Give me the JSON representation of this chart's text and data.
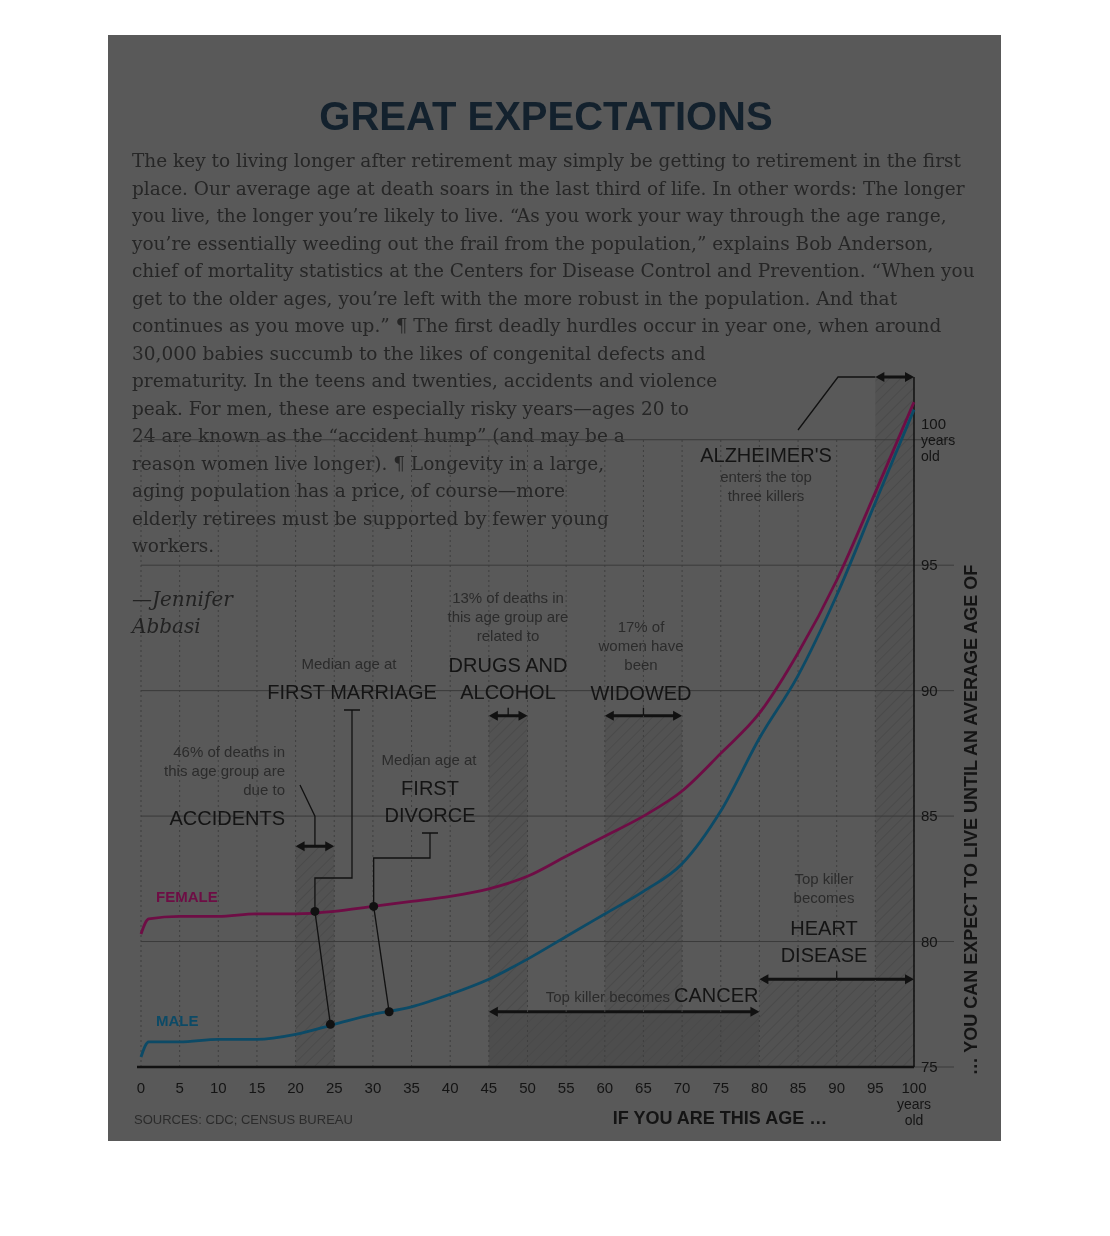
{
  "chart_data": {
    "type": "line",
    "title": "GREAT EXPECTATIONS",
    "subtitle": "The key to living longer after retirement may simply be getting to retirement in the first place. Our average age at death soars in the last third of life. In other words: The longer you live, the longer you’re likely to live. “As you work your way through the age range, you’re essentially weeding out the frail from the population,” explains Bob Anderson, chief of mortality statistics at the Centers for Disease Control and Prevention. “When you get to the older ages, you’re left with the more robust in the population. And that continues as you move up.” ¶ The first deadly hurdles occur in year one, when around 30,000 babies succumb to the likes of congenital defects and prematurity. In the teens and twenties, accidents and violence peak. For men, these are especially risky years—ages 20 to 24 are known as the “accident hump” (and may be a reason women live longer). ¶ Longevity in a large, aging population has a price, of course—more elderly retirees must be supported by fewer young workers.",
    "xlabel": "IF YOU ARE THIS AGE …",
    "ylabel": "… YOU CAN EXPECT TO LIVE UNTIL AN AVERAGE AGE OF",
    "xlim": [
      0,
      100
    ],
    "ylim": [
      75,
      102.5
    ],
    "xticks": [
      0,
      5,
      10,
      15,
      20,
      25,
      30,
      35,
      40,
      45,
      50,
      55,
      60,
      65,
      70,
      75,
      80,
      85,
      90,
      95,
      {
        "value": 100,
        "label": "100 years old"
      }
    ],
    "yticks": [
      75,
      80,
      85,
      90,
      95,
      {
        "value": 100,
        "label": "100 years old"
      }
    ],
    "grid": true,
    "series": [
      {
        "name": "FEMALE",
        "type": "line",
        "color": "#6e0d45",
        "x": [
          0,
          1,
          5,
          10,
          15,
          20,
          25,
          30,
          35,
          40,
          45,
          50,
          55,
          60,
          65,
          70,
          75,
          80,
          85,
          90,
          95,
          100
        ],
        "values": [
          80.3,
          80.9,
          81.0,
          81.0,
          81.1,
          81.1,
          81.2,
          81.4,
          81.6,
          81.8,
          82.1,
          82.6,
          83.4,
          84.2,
          85.0,
          86.0,
          87.5,
          89.1,
          91.5,
          94.4,
          97.9,
          101.5
        ]
      },
      {
        "name": "MALE",
        "type": "line",
        "color": "#0c4a66",
        "x": [
          0,
          1,
          5,
          10,
          15,
          20,
          25,
          30,
          35,
          40,
          45,
          50,
          55,
          60,
          65,
          70,
          75,
          80,
          85,
          90,
          95,
          100
        ],
        "values": [
          75.4,
          76.0,
          76.0,
          76.1,
          76.1,
          76.3,
          76.7,
          77.1,
          77.4,
          77.9,
          78.5,
          79.3,
          80.2,
          81.1,
          82.0,
          83.1,
          85.2,
          88.1,
          90.6,
          93.8,
          97.5,
          101.2
        ]
      },
      {
        "type": "scatter",
        "color": "#111111",
        "marker": "circle",
        "x": [
          22.5,
          30.1,
          24.5,
          32.1
        ],
        "values": [
          81.2,
          81.4,
          76.7,
          77.2
        ]
      }
    ],
    "bands": [
      {
        "axis": "x",
        "from": 20,
        "to": 25
      },
      {
        "axis": "x",
        "from": 45,
        "to": 50
      },
      {
        "axis": "x",
        "from": 60,
        "to": 70
      },
      {
        "axis": "x",
        "from": 95,
        "to": 100
      },
      {
        "axis": "x",
        "from": 80,
        "to": 100
      },
      {
        "axis": "x",
        "from": 45,
        "to": 80,
        "color": "#4d4d4d"
      }
    ],
    "annotations": [
      {
        "text": "46% of deaths in this age group are due to",
        "x": 22.5,
        "y": 83.8
      },
      "ACCIDENTS",
      "Median age at",
      {
        "text": "FIRST MARRIAGE",
        "x": 22.5,
        "y": 81.2
      },
      "Median age at",
      {
        "text": "FIRST DIVORCE",
        "x": 30.1,
        "y": 81.4
      },
      "13% of deaths in this age group are related to",
      {
        "text": "DRUGS AND ALCOHOL",
        "x": 47.5,
        "y": 89.0
      },
      "17% of women have been",
      {
        "text": "WIDOWED",
        "x": 65,
        "y": 89.0
      },
      {
        "text": "ALZHEIMER'S",
        "x": 95,
        "y": 102.5
      },
      "enters the top three killers",
      "Top killer becomes",
      {
        "text": "HEART DISEASE",
        "x": 90,
        "y": 78.5
      },
      "Top killer becomes",
      "CANCER",
      "—Jennifer Abbasi",
      "SOURCES: CDC; CENSUS BUREAU"
    ]
  }
}
